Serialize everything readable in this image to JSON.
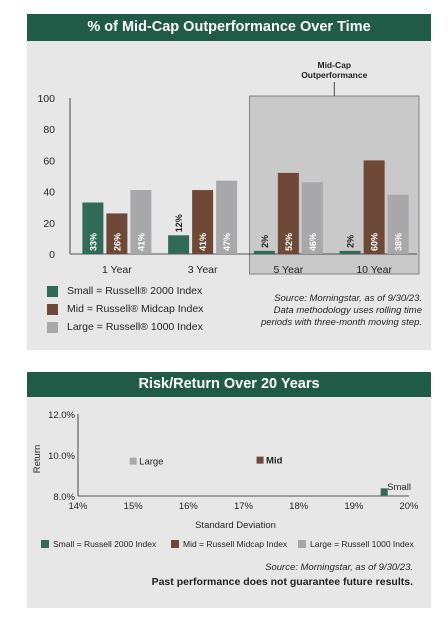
{
  "colors": {
    "banner": "#1f5b47",
    "panel_bg": "#e7e7e8",
    "small": "#2f6b57",
    "mid": "#6e4938",
    "large": "#a8a8aa",
    "highlight_box": "#c9c9ca"
  },
  "chart_data": [
    {
      "type": "bar",
      "title": "% of Mid-Cap Outperformance Over Time",
      "categories": [
        "1 Year",
        "3 Year",
        "5 Year",
        "10 Year"
      ],
      "series": [
        {
          "name": "Small = Russell® 2000 Index",
          "values": [
            33,
            12,
            2,
            2
          ],
          "labels": [
            "33%",
            "12%",
            "2%",
            "2%"
          ]
        },
        {
          "name": "Mid = Russell® Midcap Index",
          "values": [
            26,
            41,
            52,
            60
          ],
          "labels": [
            "26%",
            "41%",
            "52%",
            "60%"
          ]
        },
        {
          "name": "Large = Russell® 1000 Index",
          "values": [
            41,
            47,
            46,
            38
          ],
          "labels": [
            "41%",
            "47%",
            "46%",
            "38%"
          ]
        }
      ],
      "ylim": [
        0,
        100
      ],
      "yticks": [
        "0",
        "20",
        "40",
        "60",
        "80",
        "100"
      ],
      "annotation": "Mid-Cap\nOutperformance",
      "highlighted_categories": [
        "5 Year",
        "10 Year"
      ],
      "legend": [
        "Small = Russell® 2000 Index",
        "Mid = Russell® Midcap Index",
        "Large = Russell® 1000 Index"
      ],
      "source": "Source: Morningstar, as of 9/30/23.\nData methodology uses rolling time\nperiods with three-month moving step."
    },
    {
      "type": "scatter",
      "title": "Risk/Return Over 20 Years",
      "xlabel": "Standard Deviation",
      "ylabel": "Return",
      "xlim": [
        14,
        20
      ],
      "ylim": [
        8,
        12
      ],
      "xticks": [
        "14%",
        "15%",
        "16%",
        "17%",
        "18%",
        "19%",
        "20%"
      ],
      "yticks": [
        "8.0%",
        "10.0%",
        "12.0%"
      ],
      "points": [
        {
          "name": "Large",
          "x": 15.0,
          "y": 9.7
        },
        {
          "name": "Mid",
          "x": 17.3,
          "y": 9.75
        },
        {
          "name": "Small",
          "x": 19.55,
          "y": 8.2
        }
      ],
      "legend": [
        "Small = Russell 2000 Index",
        "Mid = Russell Midcap Index",
        "Large = Russell 1000 Index"
      ],
      "source": "Source: Morningstar, as of 9/30/23.",
      "disclaimer": "Past performance does not guarantee future results."
    }
  ]
}
